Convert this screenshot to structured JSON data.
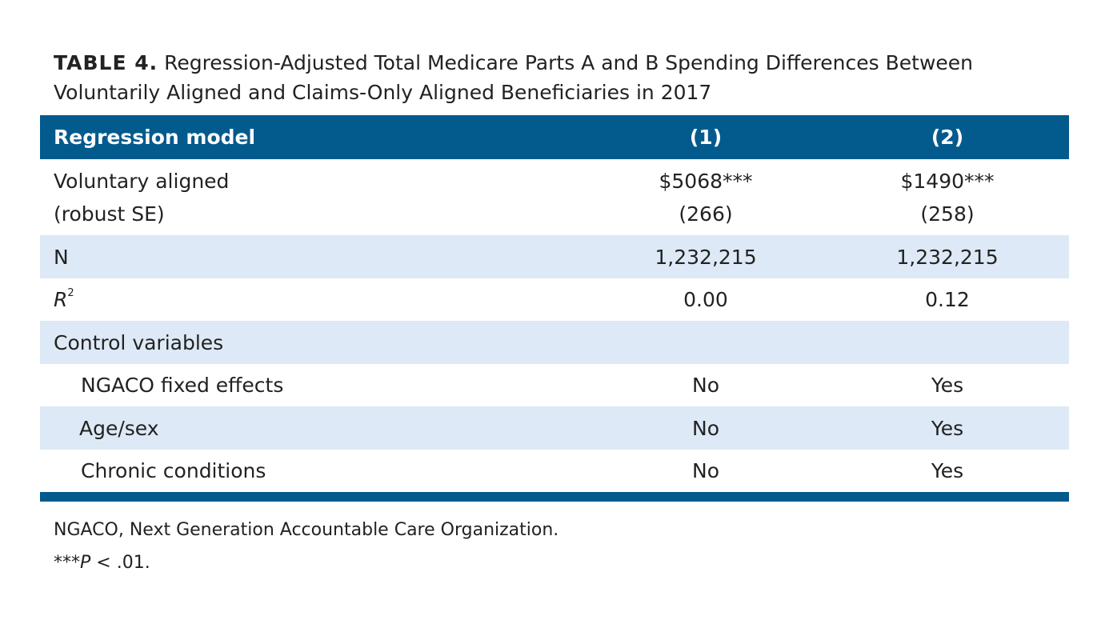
{
  "caption": {
    "label": "TABLE 4.",
    "line1": "Regression-Adjusted Total Medicare Parts A and B Spending Differences Between",
    "line2": "Voluntarily Aligned and Claims-Only Aligned Beneficiaries in 2017"
  },
  "table": {
    "headers": [
      "Regression model",
      "(1)",
      "(2)"
    ],
    "voluntary": {
      "label_line1": "Voluntary aligned",
      "label_line2": "(robust SE)",
      "col1_value": "$5068***",
      "col1_se": "(266)",
      "col2_value": "$1490***",
      "col2_se": "(258)"
    },
    "n": {
      "label": "N",
      "col1": "1,232,215",
      "col2": "1,232,215"
    },
    "r2": {
      "label": "R",
      "sup": "2",
      "col1": "0.00",
      "col2": "0.12"
    },
    "control": {
      "label": "Control variables"
    },
    "ngaco": {
      "label": "NGACO fixed effects",
      "col1": "No",
      "col2": "Yes"
    },
    "agesex": {
      "label": "Age/sex",
      "col1": "No",
      "col2": "Yes"
    },
    "chronic": {
      "label": "Chronic conditions",
      "col1": "No",
      "col2": "Yes"
    }
  },
  "notes": {
    "line1": "NGACO, Next Generation Accountable Care Organization.",
    "line2_stars": "***",
    "line2_p": "P",
    "line2_rest": " < .01."
  },
  "colors": {
    "header_bg": "#035a8d",
    "shade_row": "#dde9f6",
    "text": "#222222"
  }
}
